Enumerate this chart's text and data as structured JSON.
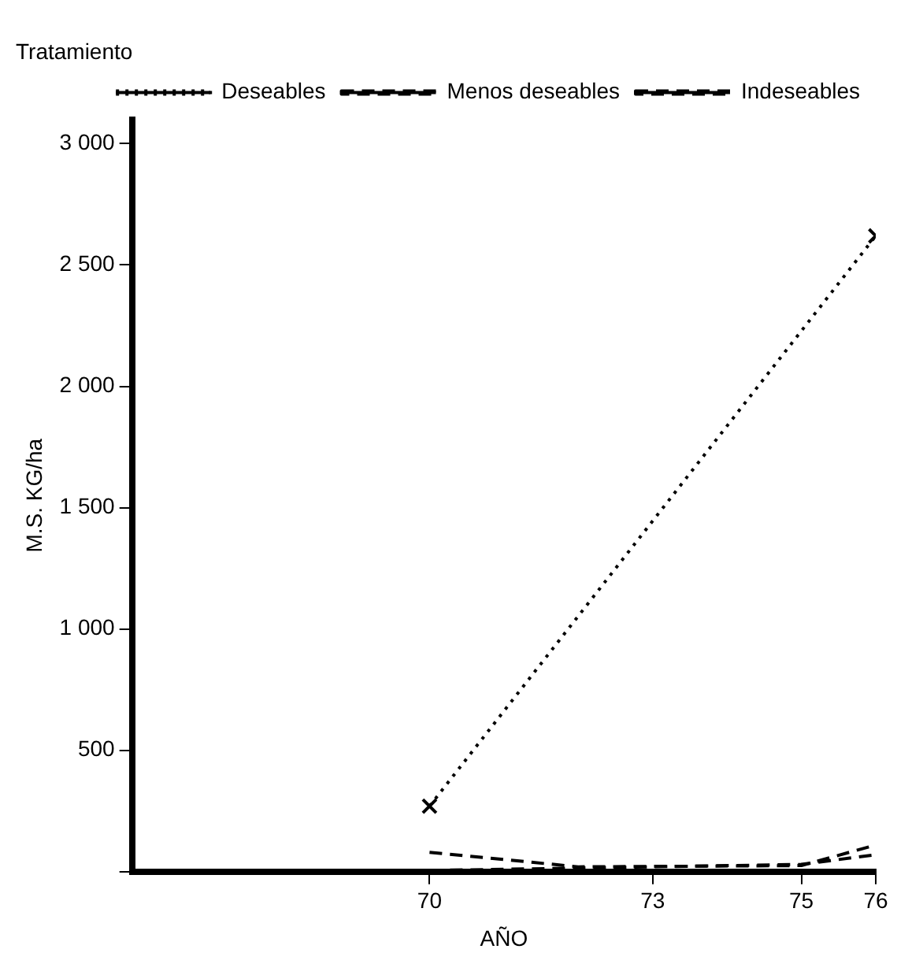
{
  "chart_data": {
    "type": "line",
    "title": "Tratamiento",
    "xlabel": "AÑO",
    "ylabel": "M.S. KG/ha",
    "xlim": [
      66,
      76
    ],
    "xticks": [
      70,
      73,
      75,
      76
    ],
    "ylim": [
      0,
      3100
    ],
    "yticks": [
      {
        "value": 0,
        "label": null
      },
      {
        "value": 500,
        "label": "500"
      },
      {
        "value": 1000,
        "label": "1 000"
      },
      {
        "value": 1500,
        "label": "1 500"
      },
      {
        "value": 2000,
        "label": "2 000"
      },
      {
        "value": 2500,
        "label": "2 500"
      },
      {
        "value": 3000,
        "label": "3 000"
      }
    ],
    "grid": false,
    "legend": "top right",
    "series": [
      {
        "name": "Deseables",
        "color": "#000000",
        "x": [
          70,
          76
        ],
        "values": [
          270,
          2620
        ],
        "marker": "cross",
        "line_style": "dotted"
      },
      {
        "name": "Menos deseables",
        "color": "#000000",
        "x": [
          70,
          72,
          75,
          76
        ],
        "values": [
          80,
          20,
          25,
          110
        ],
        "marker": "none",
        "line_style": "dashed"
      },
      {
        "name": "Indeseables",
        "color": "#000000",
        "x": [
          70,
          75,
          76
        ],
        "values": [
          5,
          30,
          70
        ],
        "marker": "none",
        "line_style": "dashed"
      }
    ]
  }
}
